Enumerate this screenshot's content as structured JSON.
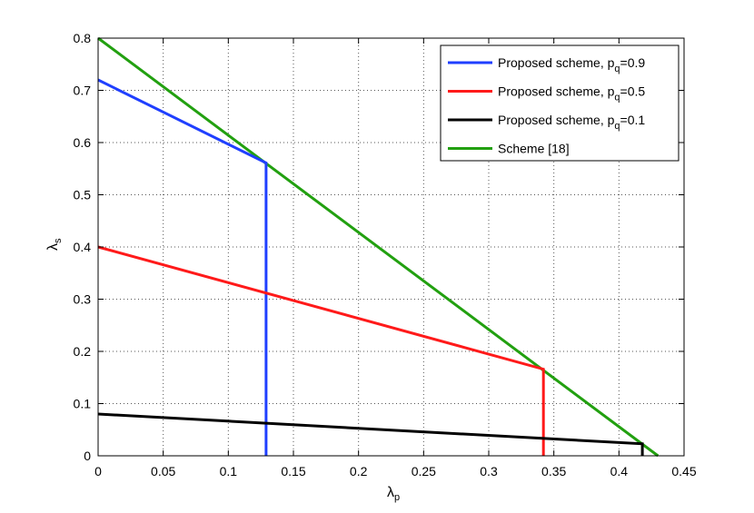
{
  "chart_data": {
    "type": "line",
    "xlabel": "λ",
    "xlabel_sub": "p",
    "ylabel": "λ",
    "ylabel_sub": "s",
    "xlim": [
      0,
      0.45
    ],
    "ylim": [
      0,
      0.8
    ],
    "xticks": [
      0,
      0.05,
      0.1,
      0.15,
      0.2,
      0.25,
      0.3,
      0.35,
      0.4,
      0.45
    ],
    "xtick_labels": [
      "0",
      "0.05",
      "0.1",
      "0.15",
      "0.2",
      "0.25",
      "0.3",
      "0.35",
      "0.4",
      "0.45"
    ],
    "yticks": [
      0,
      0.1,
      0.2,
      0.3,
      0.4,
      0.5,
      0.6,
      0.7,
      0.8
    ],
    "ytick_labels": [
      "0",
      "0.1",
      "0.2",
      "0.3",
      "0.4",
      "0.5",
      "0.6",
      "0.7",
      "0.8"
    ],
    "grid": true,
    "legend_position": "top-right",
    "series": [
      {
        "name": "Proposed scheme, p",
        "name_sub": "q",
        "name_suffix": "=0.9",
        "color": "#1f3fff",
        "x": [
          0,
          0.129,
          0.129
        ],
        "y": [
          0.72,
          0.561,
          0
        ]
      },
      {
        "name": "Proposed scheme, p",
        "name_sub": "q",
        "name_suffix": "=0.5",
        "color": "#ff1a1a",
        "x": [
          0,
          0.342,
          0.342
        ],
        "y": [
          0.4,
          0.166,
          0
        ]
      },
      {
        "name": "Proposed scheme, p",
        "name_sub": "q",
        "name_suffix": "=0.1",
        "color": "#000000",
        "x": [
          0,
          0.418,
          0.418
        ],
        "y": [
          0.08,
          0.023,
          0
        ]
      },
      {
        "name": "Scheme [18]",
        "name_sub": "",
        "name_suffix": "",
        "color": "#22a010",
        "x": [
          0,
          0.43
        ],
        "y": [
          0.8,
          0
        ]
      }
    ]
  }
}
